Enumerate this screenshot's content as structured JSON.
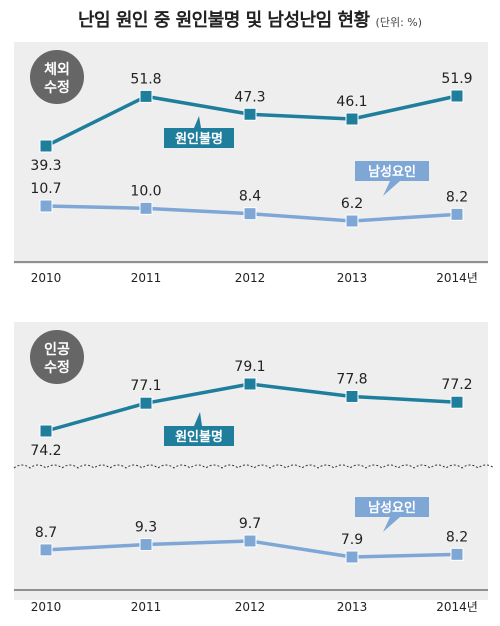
{
  "title": "난임 원인 중 원인불명 및 남성난임 현황",
  "unit": "(단위: %)",
  "colors": {
    "unexplained": "#1f7e9c",
    "male": "#7fa7d6",
    "badge": "#666666",
    "panel_bg": "#eeeeee"
  },
  "chart_data": [
    {
      "type": "line",
      "badge": "체외 수정",
      "categories": [
        "2010",
        "2011",
        "2012",
        "2013",
        "2014년"
      ],
      "series": [
        {
          "name": "원인불명",
          "values": [
            39.3,
            51.8,
            47.3,
            46.1,
            51.9
          ]
        },
        {
          "name": "남성요인",
          "values": [
            10.7,
            10.0,
            8.4,
            6.2,
            8.2
          ]
        }
      ],
      "broken_axis": false
    },
    {
      "type": "line",
      "badge": "인공 수정",
      "categories": [
        "2010",
        "2011",
        "2012",
        "2013",
        "2014년"
      ],
      "series": [
        {
          "name": "원인불명",
          "values": [
            74.2,
            77.1,
            79.1,
            77.8,
            77.2
          ]
        },
        {
          "name": "남성요인",
          "values": [
            8.7,
            9.3,
            9.7,
            7.9,
            8.2
          ]
        }
      ],
      "broken_axis": true
    }
  ]
}
